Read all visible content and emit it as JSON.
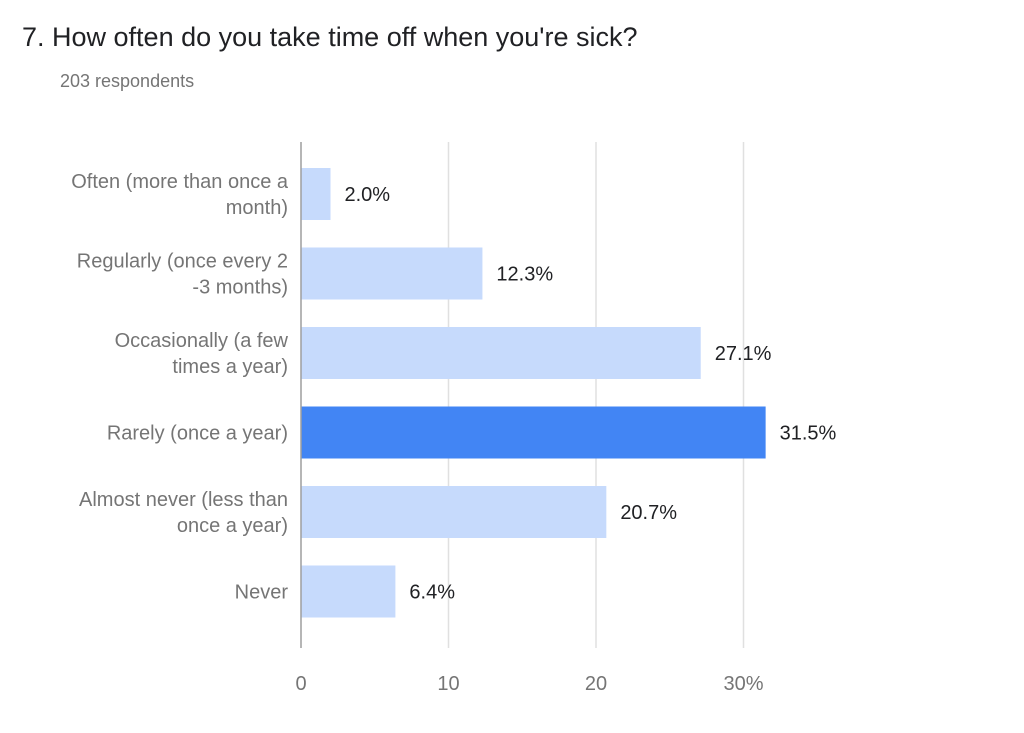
{
  "question": {
    "title": "7.  How often do you take time off when you're sick?",
    "respondents": "203 respondents"
  },
  "colors": {
    "bar": "#c6dafc",
    "bar_highlight": "#4285f4",
    "grid": "#e0e0e0",
    "axis": "#9e9e9e"
  },
  "chart_data": {
    "type": "bar",
    "orientation": "horizontal",
    "categories": [
      [
        "Often (more than once a",
        "month)"
      ],
      [
        "Regularly (once every 2",
        "-3 months)"
      ],
      [
        "Occasionally (a few",
        "times a year)"
      ],
      [
        "Rarely (once a year)"
      ],
      [
        "Almost never (less than",
        "once a year)"
      ],
      [
        "Never"
      ]
    ],
    "values": [
      2.0,
      12.3,
      27.1,
      31.5,
      20.7,
      6.4
    ],
    "value_labels": [
      "2.0%",
      "12.3%",
      "27.1%",
      "31.5%",
      "20.7%",
      "6.4%"
    ],
    "highlight_index": 3,
    "xlim": [
      0,
      30
    ],
    "xticks": [
      0,
      10,
      20,
      30
    ],
    "xtick_labels": [
      "0",
      "10",
      "20",
      "30%"
    ],
    "grid": true
  }
}
